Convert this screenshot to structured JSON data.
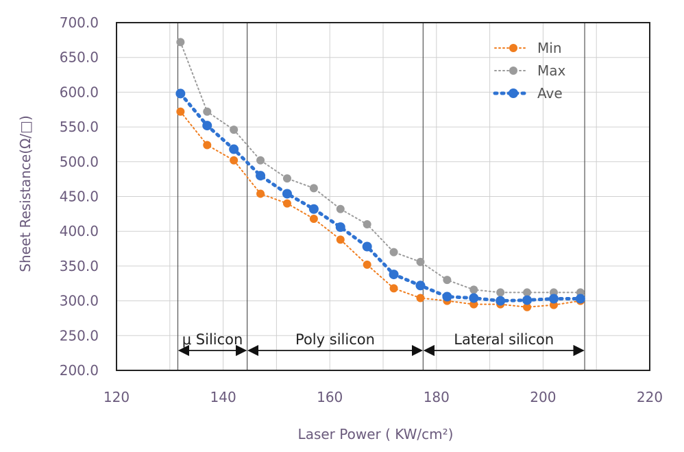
{
  "chart_data": {
    "type": "line",
    "title": "",
    "xlabel": "Laser Power ( KW/cm²)",
    "ylabel": "Sheet Resistance(Ω/□)",
    "xlim": [
      120,
      220
    ],
    "ylim": [
      200,
      700
    ],
    "x_ticks": [
      120,
      140,
      160,
      180,
      200,
      220
    ],
    "y_ticks": [
      200,
      250,
      300,
      350,
      400,
      450,
      500,
      550,
      600,
      650,
      700
    ],
    "x_tick_labels": [
      "120",
      "140",
      "160",
      "180",
      "200",
      "220"
    ],
    "y_tick_labels": [
      "200.0",
      "250.0",
      "300.0",
      "350.0",
      "400.0",
      "450.0",
      "500.0",
      "550.0",
      "600.0",
      "650.0",
      "700.0"
    ],
    "grid": true,
    "x": [
      132,
      137,
      142,
      147,
      152,
      157,
      162,
      167,
      172,
      177,
      182,
      187,
      192,
      197,
      202,
      207
    ],
    "series": [
      {
        "name": "Min",
        "color": "#f07d1e",
        "values": [
          572,
          524,
          502,
          454,
          440,
          418,
          388,
          352,
          318,
          304,
          300,
          295,
          295,
          291,
          294,
          300
        ]
      },
      {
        "name": "Max",
        "color": "#9b9b9b",
        "values": [
          672,
          572,
          546,
          502,
          476,
          462,
          432,
          410,
          370,
          356,
          330,
          316,
          312,
          312,
          312,
          312
        ]
      },
      {
        "name": "Ave",
        "color": "#2f73d2",
        "values": [
          598,
          552,
          518,
          480,
          454,
          432,
          406,
          378,
          338,
          322,
          306,
          304,
          300,
          301,
          303,
          303
        ]
      }
    ],
    "region_boundaries": [
      131.5,
      144.5,
      177.5,
      207.8
    ],
    "regions": [
      {
        "label": "μ Silicon",
        "from": 131.5,
        "to": 144.5
      },
      {
        "label": "Poly silicon",
        "from": 144.5,
        "to": 177.5
      },
      {
        "label": "Lateral silicon",
        "from": 177.5,
        "to": 207.8
      }
    ],
    "legend_position": "top-right"
  }
}
